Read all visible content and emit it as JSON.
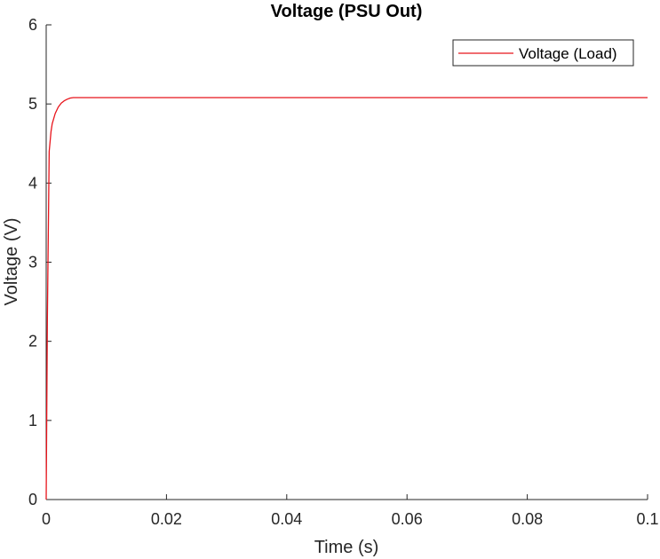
{
  "chart_data": {
    "type": "line",
    "title": "Voltage (PSU Out)",
    "xlabel": "Time (s)",
    "ylabel": "Voltage (V)",
    "xlim": [
      0,
      0.1
    ],
    "ylim": [
      0,
      6
    ],
    "x_ticks": [
      0,
      0.02,
      0.04,
      0.06,
      0.08,
      0.1
    ],
    "x_tick_labels": [
      "0",
      "0.02",
      "0.04",
      "0.06",
      "0.08",
      "0.1"
    ],
    "y_ticks": [
      0,
      1,
      2,
      3,
      4,
      5,
      6
    ],
    "y_tick_labels": [
      "0",
      "1",
      "2",
      "3",
      "4",
      "5",
      "6"
    ],
    "grid": false,
    "legend_position": "top-right",
    "series": [
      {
        "name": "Voltage (Load)",
        "color": "#e8141b",
        "x": [
          0,
          0.0002,
          0.0005,
          0.0008,
          0.001,
          0.0015,
          0.002,
          0.0025,
          0.003,
          0.0035,
          0.004,
          0.0045,
          0.006,
          0.01,
          0.02,
          0.04,
          0.06,
          0.08,
          0.1
        ],
        "y": [
          0,
          2.3,
          4.4,
          4.65,
          4.75,
          4.88,
          4.96,
          5.01,
          5.04,
          5.06,
          5.075,
          5.08,
          5.08,
          5.08,
          5.08,
          5.08,
          5.08,
          5.08,
          5.08
        ]
      }
    ]
  }
}
